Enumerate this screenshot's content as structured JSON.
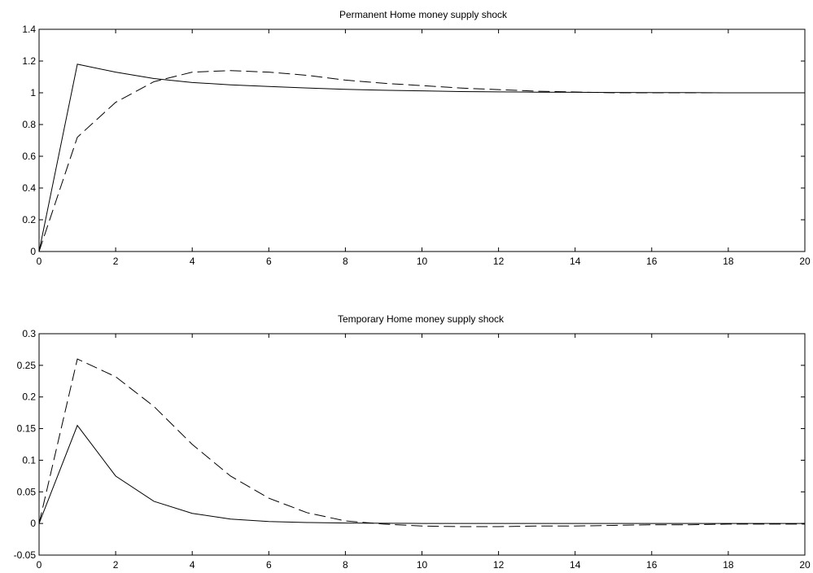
{
  "chart_data": [
    {
      "type": "line",
      "title": "Permanent Home money supply shock",
      "xlim": [
        0,
        20
      ],
      "ylim": [
        0,
        1.4
      ],
      "xticks": [
        "0",
        "2",
        "4",
        "6",
        "8",
        "10",
        "12",
        "14",
        "16",
        "18",
        "20"
      ],
      "yticks": [
        "0",
        "0.2",
        "0.4",
        "0.6",
        "0.8",
        "1",
        "1.2",
        "1.4"
      ],
      "grid": false,
      "series": [
        {
          "style": "solid",
          "x": [
            0,
            1,
            2,
            3,
            4,
            5,
            6,
            7,
            8,
            9,
            10,
            11,
            12,
            13,
            14,
            15,
            16,
            17,
            18,
            19,
            20
          ],
          "y": [
            0,
            1.18,
            1.13,
            1.09,
            1.065,
            1.05,
            1.04,
            1.03,
            1.022,
            1.016,
            1.012,
            1.008,
            1.006,
            1.004,
            1.003,
            1.002,
            1.001,
            1.001,
            1.0,
            1.0,
            1.0
          ]
        },
        {
          "style": "dashed",
          "x": [
            0,
            1,
            2,
            3,
            4,
            5,
            6,
            7,
            8,
            9,
            10,
            11,
            12,
            13,
            14,
            15,
            16,
            17,
            18,
            19,
            20
          ],
          "y": [
            0,
            0.72,
            0.94,
            1.07,
            1.13,
            1.14,
            1.13,
            1.11,
            1.08,
            1.06,
            1.045,
            1.03,
            1.02,
            1.01,
            1.005,
            1.0,
            1.0,
            1.0,
            1.0,
            1.0,
            1.0
          ]
        }
      ]
    },
    {
      "type": "line",
      "title": "Temporary Home money supply shock",
      "xlim": [
        0,
        20
      ],
      "ylim": [
        -0.05,
        0.3
      ],
      "xticks": [
        "0",
        "2",
        "4",
        "6",
        "8",
        "10",
        "12",
        "14",
        "16",
        "18",
        "20"
      ],
      "yticks": [
        "-0.05",
        "0",
        "0.05",
        "0.1",
        "0.15",
        "0.2",
        "0.25",
        "0.3"
      ],
      "grid": false,
      "series": [
        {
          "style": "solid",
          "x": [
            0,
            1,
            2,
            3,
            4,
            5,
            6,
            7,
            8,
            9,
            10,
            11,
            12,
            13,
            14,
            15,
            16,
            17,
            18,
            19,
            20
          ],
          "y": [
            0,
            0.155,
            0.075,
            0.035,
            0.016,
            0.007,
            0.003,
            0.0015,
            0.0007,
            0.0003,
            0.0001,
            0,
            0,
            0,
            0,
            0,
            0,
            0,
            0,
            0,
            0
          ]
        },
        {
          "style": "dashed",
          "x": [
            0,
            1,
            2,
            3,
            4,
            5,
            6,
            7,
            8,
            9,
            10,
            11,
            12,
            13,
            14,
            15,
            16,
            17,
            18,
            19,
            20
          ],
          "y": [
            0,
            0.26,
            0.232,
            0.185,
            0.125,
            0.075,
            0.04,
            0.017,
            0.004,
            -0.001,
            -0.004,
            -0.005,
            -0.005,
            -0.004,
            -0.004,
            -0.003,
            -0.002,
            -0.002,
            -0.001,
            -0.001,
            -0.001
          ]
        }
      ]
    }
  ]
}
